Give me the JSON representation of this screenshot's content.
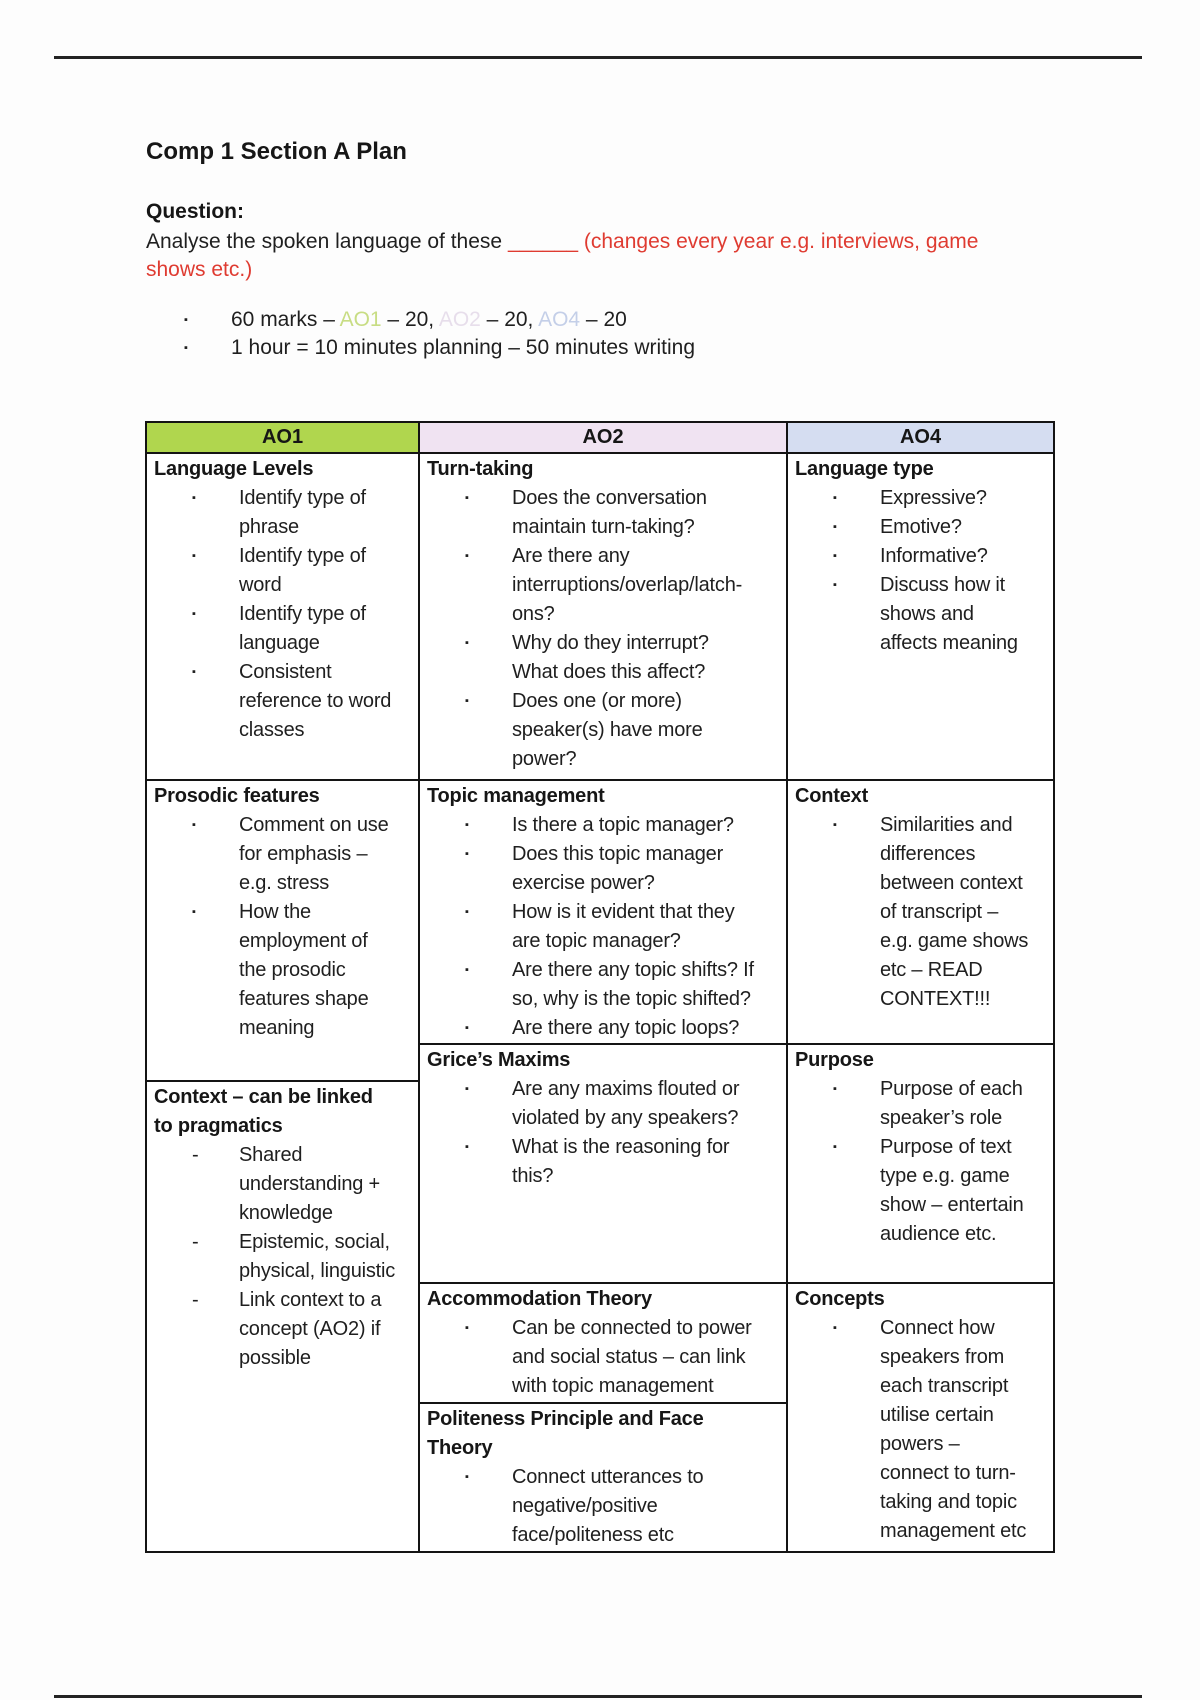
{
  "doc": {
    "title": "Comp 1 Section A Plan",
    "question_label": "Question:",
    "question_intro": "Analyse the spoken language of these ",
    "question_blank": "______ ",
    "question_note_line1": "(changes every year e.g. interviews, game",
    "question_note_line2": "shows etc.)"
  },
  "bullets": {
    "marks": {
      "text_start": "60 marks – ",
      "ao1_label": "AO1",
      "after_ao1": " – 20, ",
      "ao2_label": "AO2",
      "after_ao2": " – 20, ",
      "ao4_label": "AO4",
      "after_ao4": " – 20"
    },
    "time": "1 hour = 10 minutes planning – 50 minutes writing"
  },
  "colors": {
    "red": "#df3b31",
    "ao1_inline": "#c8dd84",
    "ao2_inline": "#e7deeb",
    "ao4_inline": "#c4cfe8",
    "ao1_header_bg": "#b0d64e",
    "ao2_header_bg": "#f0e3f2",
    "ao4_header_bg": "#d5ddf1"
  },
  "table": {
    "columns": [
      {
        "header": "AO1",
        "header_bg": "#b0d64e",
        "cells": [
          {
            "title": "Language Levels",
            "marker": "square",
            "items": [
              "Identify type of\nphrase",
              "Identify type of\nword",
              "Identify type of\nlanguage",
              "Consistent\nreference to word\nclasses"
            ]
          },
          {
            "title": "Prosodic features",
            "marker": "square",
            "items": [
              "Comment on use\nfor emphasis –\ne.g. stress",
              "How the\nemployment of\nthe prosodic\nfeatures shape\nmeaning"
            ]
          },
          {
            "title": "Context – can be linked\nto pragmatics",
            "marker": "dash",
            "items": [
              "Shared\nunderstanding +\nknowledge",
              "Epistemic, social,\nphysical, linguistic",
              "Link context to a\nconcept (AO2) if\npossible"
            ]
          }
        ]
      },
      {
        "header": "AO2",
        "header_bg": "#f0e3f2",
        "cells": [
          {
            "title": "Turn-taking",
            "marker": "square",
            "items": [
              "Does the conversation\nmaintain turn-taking?",
              "Are there any\ninterruptions/overlap/latch-\nons?",
              "Why do they interrupt?\nWhat does this affect?",
              "Does one (or more)\nspeaker(s) have more\npower?"
            ]
          },
          {
            "title": "Topic management",
            "marker": "square",
            "items": [
              "Is there a topic manager?",
              "Does this topic manager\nexercise power?",
              "How is it evident that they\nare topic manager?",
              "Are there any topic shifts? If\nso, why is the topic shifted?",
              "Are there any topic loops?"
            ]
          },
          {
            "title": "Grice’s Maxims",
            "marker": "square",
            "items": [
              "Are any maxims flouted or\nviolated by any speakers?",
              "What is the reasoning for\nthis?"
            ]
          },
          {
            "title": "Accommodation Theory",
            "marker": "square",
            "items": [
              "Can be connected to power\nand social status – can link\nwith topic management"
            ]
          },
          {
            "title": "Politeness Principle and Face\nTheory",
            "marker": "square",
            "items": [
              "Connect utterances to\nnegative/positive\nface/politeness etc"
            ]
          }
        ]
      },
      {
        "header": "AO4",
        "header_bg": "#d5ddf1",
        "cells": [
          {
            "title": "Language type",
            "marker": "square",
            "items": [
              "Expressive?",
              "Emotive?",
              "Informative?",
              "Discuss how it\nshows and\naffects meaning"
            ]
          },
          {
            "title": "Context",
            "marker": "square",
            "items": [
              "Similarities and\ndifferences\nbetween context\nof transcript –\ne.g. game shows\netc – READ\nCONTEXT!!!"
            ]
          },
          {
            "title": "Purpose",
            "marker": "square",
            "items": [
              "Purpose of each\nspeaker’s role",
              "Purpose of text\ntype e.g. game\nshow – entertain\naudience etc."
            ]
          },
          {
            "title": "Concepts",
            "marker": "square",
            "items": [
              "Connect how\nspeakers from\neach transcript\nutilise certain\npowers –\nconnect to turn-\ntaking and topic\nmanagement etc"
            ]
          }
        ]
      }
    ]
  }
}
